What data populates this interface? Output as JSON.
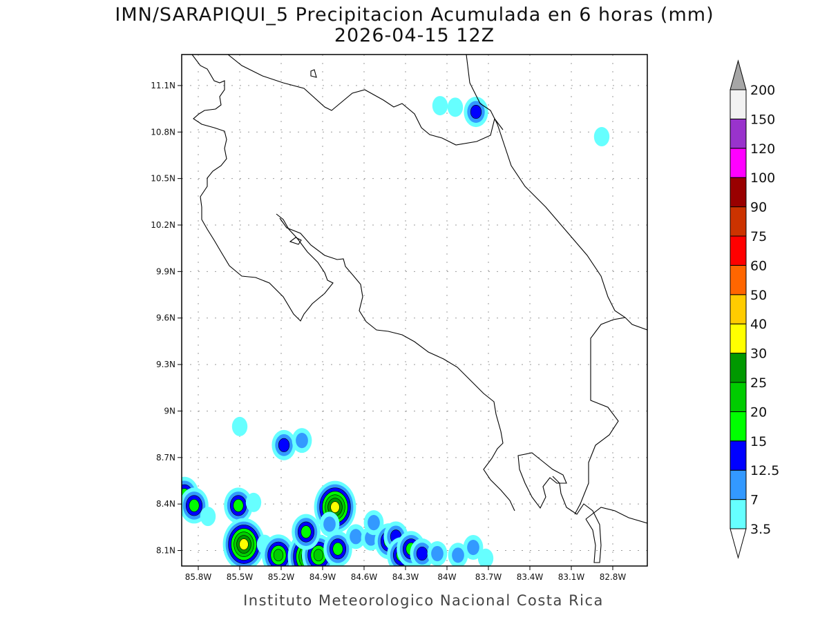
{
  "header": {
    "title_line1": "IMN/SARAPIQUI_5 Precipitacion Acumulada en 6 horas (mm)",
    "title_line2": "2026-04-15 12Z"
  },
  "footer": {
    "credit": "Instituto Meteorologico Nacional Costa Rica"
  },
  "chart_data": {
    "type": "heatmap",
    "title": "IMN/SARAPIQUI_5 Precipitacion Acumulada en 6 horas (mm)",
    "subtitle": "2026-04-15 12Z",
    "xlabel": "",
    "ylabel": "",
    "xlim": [
      -85.92,
      -82.55
    ],
    "ylim": [
      8.0,
      11.3
    ],
    "grid": true,
    "x_ticks": [
      {
        "value": -85.8,
        "label": "85.8W"
      },
      {
        "value": -85.5,
        "label": "85.5W"
      },
      {
        "value": -85.2,
        "label": "85.2W"
      },
      {
        "value": -84.9,
        "label": "84.9W"
      },
      {
        "value": -84.6,
        "label": "84.6W"
      },
      {
        "value": -84.3,
        "label": "84.3W"
      },
      {
        "value": -84.0,
        "label": "84W"
      },
      {
        "value": -83.7,
        "label": "83.7W"
      },
      {
        "value": -83.4,
        "label": "83.4W"
      },
      {
        "value": -83.1,
        "label": "83.1W"
      },
      {
        "value": -82.8,
        "label": "82.8W"
      }
    ],
    "y_ticks": [
      {
        "value": 11.1,
        "label": "11.1N"
      },
      {
        "value": 10.8,
        "label": "10.8N"
      },
      {
        "value": 10.5,
        "label": "10.5N"
      },
      {
        "value": 10.2,
        "label": "10.2N"
      },
      {
        "value": 9.9,
        "label": "9.9N"
      },
      {
        "value": 9.6,
        "label": "9.6N"
      },
      {
        "value": 9.3,
        "label": "9.3N"
      },
      {
        "value": 9.0,
        "label": "9N"
      },
      {
        "value": 8.7,
        "label": "8.7N"
      },
      {
        "value": 8.4,
        "label": "8.4N"
      },
      {
        "value": 8.1,
        "label": "8.1N"
      }
    ],
    "colorbar": {
      "labels": [
        "3.5",
        "7",
        "12.5",
        "15",
        "20",
        "25",
        "30",
        "40",
        "50",
        "60",
        "75",
        "90",
        "100",
        "120",
        "150",
        "200"
      ],
      "colors": [
        "#66ffff",
        "#3399ff",
        "#0000ff",
        "#00ff00",
        "#00cc00",
        "#009900",
        "#ffff00",
        "#ffcc00",
        "#ff6600",
        "#ff0000",
        "#cc3300",
        "#990000",
        "#ff00ff",
        "#9933cc",
        "#f2f2f2"
      ],
      "over_color": "#a6a6a6",
      "under_color": "#ffffff"
    },
    "cells": [
      {
        "lon": -84.05,
        "lat": 10.97,
        "level": 1
      },
      {
        "lon": -83.94,
        "lat": 10.96,
        "level": 1
      },
      {
        "lon": -83.79,
        "lat": 10.93,
        "level": 3
      },
      {
        "lon": -82.88,
        "lat": 10.77,
        "level": 1
      },
      {
        "lon": -85.5,
        "lat": 8.9,
        "level": 1
      },
      {
        "lon": -85.18,
        "lat": 8.78,
        "level": 3
      },
      {
        "lon": -85.05,
        "lat": 8.81,
        "level": 2
      },
      {
        "lon": -85.9,
        "lat": 8.46,
        "level": 4
      },
      {
        "lon": -85.83,
        "lat": 8.39,
        "level": 4
      },
      {
        "lon": -85.51,
        "lat": 8.39,
        "level": 4
      },
      {
        "lon": -85.4,
        "lat": 8.41,
        "level": 1
      },
      {
        "lon": -85.73,
        "lat": 8.32,
        "level": 1
      },
      {
        "lon": -84.81,
        "lat": 8.38,
        "level": 7
      },
      {
        "lon": -85.47,
        "lat": 8.14,
        "level": 7
      },
      {
        "lon": -85.32,
        "lat": 8.14,
        "level": 1
      },
      {
        "lon": -85.22,
        "lat": 8.07,
        "level": 5
      },
      {
        "lon": -85.0,
        "lat": 8.06,
        "level": 7
      },
      {
        "lon": -84.93,
        "lat": 8.07,
        "level": 5
      },
      {
        "lon": -85.02,
        "lat": 8.22,
        "level": 4
      },
      {
        "lon": -84.79,
        "lat": 8.11,
        "level": 4
      },
      {
        "lon": -84.85,
        "lat": 8.27,
        "level": 2
      },
      {
        "lon": -84.66,
        "lat": 8.19,
        "level": 2
      },
      {
        "lon": -84.55,
        "lat": 8.18,
        "level": 2
      },
      {
        "lon": -84.53,
        "lat": 8.28,
        "level": 2
      },
      {
        "lon": -84.42,
        "lat": 8.16,
        "level": 4
      },
      {
        "lon": -84.37,
        "lat": 8.19,
        "level": 3
      },
      {
        "lon": -84.33,
        "lat": 8.07,
        "level": 4
      },
      {
        "lon": -84.26,
        "lat": 8.11,
        "level": 4
      },
      {
        "lon": -84.18,
        "lat": 8.08,
        "level": 3
      },
      {
        "lon": -84.07,
        "lat": 8.08,
        "level": 2
      },
      {
        "lon": -83.92,
        "lat": 8.07,
        "level": 2
      },
      {
        "lon": -83.81,
        "lat": 8.12,
        "level": 2
      },
      {
        "lon": -83.72,
        "lat": 8.05,
        "level": 1
      }
    ]
  }
}
